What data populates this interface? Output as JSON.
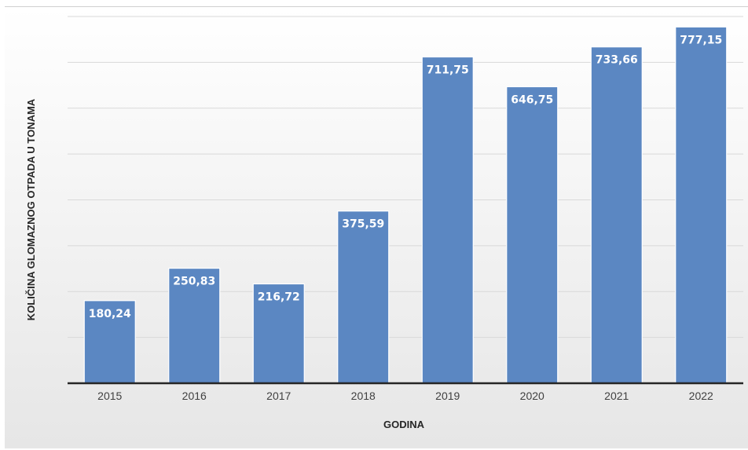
{
  "chart_data": {
    "type": "bar",
    "title": "",
    "xlabel": "GODINA",
    "ylabel": "KOLIČINA GLOMAZNOG OTPADA U TONAMA",
    "categories": [
      "2015",
      "2016",
      "2017",
      "2018",
      "2019",
      "2020",
      "2021",
      "2022"
    ],
    "values": [
      180.24,
      250.83,
      216.72,
      375.59,
      711.75,
      646.75,
      733.66,
      777.15
    ],
    "data_labels": [
      "180,24",
      "250,83",
      "216,72",
      "375,59",
      "711,75",
      "646,75",
      "733,66",
      "777,15"
    ],
    "ylim": [
      0,
      800
    ],
    "grid": true,
    "legend": "none",
    "bar_color": "#5b87c2",
    "bar_edge_color": "#ffffff"
  }
}
